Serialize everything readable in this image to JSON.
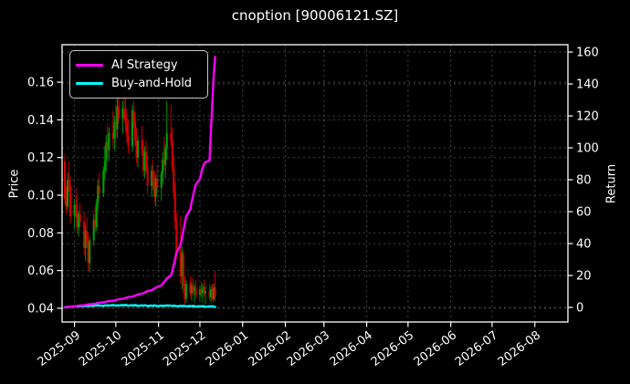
{
  "title": "cnoption [90006121.SZ]",
  "axes": {
    "left_label": "Price",
    "right_label": "Return",
    "price_ticks": [
      0.04,
      0.06,
      0.08,
      0.1,
      0.12,
      0.14,
      0.16
    ],
    "price_tick_labels": [
      "0.04",
      "0.06",
      "0.08",
      "0.10",
      "0.12",
      "0.14",
      "0.16"
    ],
    "return_ticks": [
      0,
      20,
      40,
      60,
      80,
      100,
      120,
      140,
      160
    ],
    "return_tick_labels": [
      "0",
      "20",
      "40",
      "60",
      "80",
      "100",
      "120",
      "140",
      "160"
    ],
    "x_tick_labels": [
      "2025-09",
      "2025-10",
      "2025-11",
      "2025-12",
      "2026-01",
      "2026-02",
      "2026-03",
      "2026-04",
      "2026-05",
      "2026-06",
      "2026-07",
      "2026-08"
    ],
    "grid": true
  },
  "legend": {
    "entries": [
      {
        "label": "AI Strategy",
        "color": "#ff00ff"
      },
      {
        "label": "Buy-and-Hold",
        "color": "#00ffff"
      }
    ],
    "position": "upper-left"
  },
  "colors": {
    "background": "#000000",
    "text": "#ffffff",
    "spine": "#ffffff",
    "grid": "#454545",
    "candle_up": "#00a000",
    "candle_down": "#d40000",
    "ai_strategy": "#ff00ff",
    "buy_and_hold": "#00ffff"
  },
  "chart_data": {
    "type": "candlestick+line",
    "title": "cnoption [90006121.SZ]",
    "xlabel": "",
    "ylabel_left": "Price",
    "ylabel_right": "Return",
    "x_range": [
      "2025-08-23",
      "2026-08-25"
    ],
    "price_ylim": [
      0.0327,
      0.1799
    ],
    "return_ylim": [
      -9.1,
      164.6
    ],
    "dates": [
      "2025-08-25",
      "2025-08-26",
      "2025-08-27",
      "2025-08-28",
      "2025-08-29",
      "2025-09-01",
      "2025-09-02",
      "2025-09-03",
      "2025-09-04",
      "2025-09-05",
      "2025-09-08",
      "2025-09-09",
      "2025-09-10",
      "2025-09-11",
      "2025-09-12",
      "2025-09-15",
      "2025-09-16",
      "2025-09-17",
      "2025-09-18",
      "2025-09-19",
      "2025-09-22",
      "2025-09-23",
      "2025-09-24",
      "2025-09-25",
      "2025-09-26",
      "2025-09-29",
      "2025-09-30",
      "2025-10-01",
      "2025-10-02",
      "2025-10-03",
      "2025-10-06",
      "2025-10-07",
      "2025-10-08",
      "2025-10-09",
      "2025-10-10",
      "2025-10-13",
      "2025-10-14",
      "2025-10-15",
      "2025-10-16",
      "2025-10-17",
      "2025-10-20",
      "2025-10-21",
      "2025-10-22",
      "2025-10-23",
      "2025-10-24",
      "2025-10-27",
      "2025-10-28",
      "2025-10-29",
      "2025-10-30",
      "2025-10-31",
      "2025-11-03",
      "2025-11-04",
      "2025-11-05",
      "2025-11-06",
      "2025-11-07",
      "2025-11-10",
      "2025-11-11",
      "2025-11-12",
      "2025-11-13",
      "2025-11-14",
      "2025-11-17",
      "2025-11-18",
      "2025-11-19",
      "2025-11-20",
      "2025-11-21",
      "2025-11-24",
      "2025-11-25",
      "2025-11-26",
      "2025-11-27",
      "2025-11-28",
      "2025-12-01",
      "2025-12-02",
      "2025-12-03",
      "2025-12-04",
      "2025-12-05",
      "2025-12-08",
      "2025-12-09",
      "2025-12-10",
      "2025-12-11",
      "2025-12-12"
    ],
    "candles_ohlc": [
      [
        0.118,
        0.122,
        0.095,
        0.098
      ],
      [
        0.098,
        0.105,
        0.09,
        0.094
      ],
      [
        0.094,
        0.112,
        0.092,
        0.108
      ],
      [
        0.108,
        0.118,
        0.102,
        0.105
      ],
      [
        0.105,
        0.11,
        0.085,
        0.089
      ],
      [
        0.089,
        0.098,
        0.082,
        0.095
      ],
      [
        0.095,
        0.104,
        0.088,
        0.091
      ],
      [
        0.091,
        0.1,
        0.08,
        0.083
      ],
      [
        0.083,
        0.092,
        0.078,
        0.09
      ],
      [
        0.09,
        0.096,
        0.083,
        0.086
      ],
      [
        0.086,
        0.091,
        0.068,
        0.072
      ],
      [
        0.072,
        0.084,
        0.065,
        0.081
      ],
      [
        0.081,
        0.088,
        0.072,
        0.075
      ],
      [
        0.075,
        0.08,
        0.06,
        0.064
      ],
      [
        0.064,
        0.078,
        0.059,
        0.076
      ],
      [
        0.076,
        0.09,
        0.073,
        0.087
      ],
      [
        0.087,
        0.094,
        0.08,
        0.083
      ],
      [
        0.083,
        0.098,
        0.081,
        0.096
      ],
      [
        0.096,
        0.108,
        0.092,
        0.105
      ],
      [
        0.105,
        0.112,
        0.098,
        0.101
      ],
      [
        0.101,
        0.115,
        0.099,
        0.113
      ],
      [
        0.113,
        0.126,
        0.108,
        0.118
      ],
      [
        0.118,
        0.132,
        0.112,
        0.128
      ],
      [
        0.128,
        0.138,
        0.12,
        0.124
      ],
      [
        0.124,
        0.136,
        0.118,
        0.133
      ],
      [
        0.133,
        0.145,
        0.126,
        0.13
      ],
      [
        0.13,
        0.142,
        0.124,
        0.139
      ],
      [
        0.139,
        0.148,
        0.132,
        0.135
      ],
      [
        0.135,
        0.152,
        0.13,
        0.147
      ],
      [
        0.147,
        0.154,
        0.138,
        0.141
      ],
      [
        0.141,
        0.15,
        0.133,
        0.146
      ],
      [
        0.146,
        0.155,
        0.14,
        0.143
      ],
      [
        0.143,
        0.151,
        0.134,
        0.138
      ],
      [
        0.138,
        0.146,
        0.128,
        0.132
      ],
      [
        0.132,
        0.14,
        0.122,
        0.126
      ],
      [
        0.126,
        0.148,
        0.123,
        0.145
      ],
      [
        0.145,
        0.15,
        0.136,
        0.139
      ],
      [
        0.139,
        0.144,
        0.126,
        0.129
      ],
      [
        0.129,
        0.136,
        0.117,
        0.12
      ],
      [
        0.12,
        0.132,
        0.115,
        0.129
      ],
      [
        0.129,
        0.137,
        0.121,
        0.124
      ],
      [
        0.124,
        0.13,
        0.11,
        0.113
      ],
      [
        0.113,
        0.126,
        0.109,
        0.123
      ],
      [
        0.123,
        0.129,
        0.112,
        0.115
      ],
      [
        0.115,
        0.121,
        0.101,
        0.105
      ],
      [
        0.105,
        0.116,
        0.099,
        0.113
      ],
      [
        0.113,
        0.119,
        0.103,
        0.107
      ],
      [
        0.107,
        0.113,
        0.096,
        0.099
      ],
      [
        0.099,
        0.111,
        0.094,
        0.109
      ],
      [
        0.109,
        0.116,
        0.101,
        0.104
      ],
      [
        0.104,
        0.113,
        0.097,
        0.111
      ],
      [
        0.111,
        0.123,
        0.106,
        0.119
      ],
      [
        0.119,
        0.131,
        0.113,
        0.116
      ],
      [
        0.116,
        0.127,
        0.109,
        0.125
      ],
      [
        0.125,
        0.15,
        0.119,
        0.133
      ],
      [
        0.133,
        0.148,
        0.126,
        0.129
      ],
      [
        0.129,
        0.136,
        0.112,
        0.115
      ],
      [
        0.115,
        0.121,
        0.098,
        0.101
      ],
      [
        0.101,
        0.107,
        0.082,
        0.086
      ],
      [
        0.086,
        0.091,
        0.066,
        0.07
      ],
      [
        0.07,
        0.089,
        0.053,
        0.057
      ],
      [
        0.057,
        0.073,
        0.05,
        0.069
      ],
      [
        0.069,
        0.071,
        0.048,
        0.052
      ],
      [
        0.052,
        0.057,
        0.042,
        0.045
      ],
      [
        0.045,
        0.055,
        0.043,
        0.053
      ],
      [
        0.053,
        0.057,
        0.046,
        0.048
      ],
      [
        0.048,
        0.054,
        0.044,
        0.052
      ],
      [
        0.052,
        0.056,
        0.047,
        0.049
      ],
      [
        0.049,
        0.053,
        0.043,
        0.051
      ],
      [
        0.051,
        0.055,
        0.045,
        0.047
      ],
      [
        0.047,
        0.052,
        0.044,
        0.05
      ],
      [
        0.05,
        0.054,
        0.046,
        0.048
      ],
      [
        0.048,
        0.053,
        0.043,
        0.051
      ],
      [
        0.051,
        0.055,
        0.046,
        0.048
      ],
      [
        0.048,
        0.052,
        0.042,
        0.049
      ],
      [
        0.049,
        0.053,
        0.044,
        0.046
      ],
      [
        0.046,
        0.052,
        0.043,
        0.05
      ],
      [
        0.05,
        0.053,
        0.044,
        0.045
      ],
      [
        0.045,
        0.053,
        0.043,
        0.051
      ],
      [
        0.051,
        0.06,
        0.044,
        0.046
      ]
    ],
    "series": [
      {
        "name": "AI Strategy",
        "axis": "return",
        "color": "#ff00ff",
        "values": [
          0,
          0.1,
          0.2,
          0.3,
          0.5,
          0.6,
          0.8,
          0.9,
          1.1,
          1.2,
          1.4,
          1.5,
          1.7,
          1.9,
          2.0,
          2.2,
          2.4,
          2.6,
          2.8,
          3.0,
          3.2,
          3.4,
          3.6,
          3.8,
          4.0,
          4.2,
          4.4,
          4.6,
          4.9,
          5.1,
          5.4,
          5.6,
          5.9,
          6.2,
          6.5,
          6.8,
          7.1,
          7.4,
          7.8,
          8.2,
          8.6,
          9.0,
          9.4,
          9.8,
          10.3,
          10.8,
          11.3,
          11.8,
          12.3,
          12.9,
          13.8,
          14.8,
          15.8,
          16.9,
          18.2,
          20.0,
          23.0,
          26.5,
          30.5,
          34.5,
          39.0,
          43.5,
          48.0,
          52.5,
          57.0,
          61.5,
          66.0,
          70.0,
          73.5,
          77.0,
          80.5,
          84.5,
          87.5,
          90.0,
          91.0,
          92.0,
          110.0,
          128.0,
          145.0,
          157.0
        ]
      },
      {
        "name": "Buy-and-Hold",
        "axis": "return",
        "color": "#00ffff",
        "values": [
          0.0,
          0.2,
          0.4,
          0.3,
          0.5,
          0.6,
          0.8,
          0.6,
          0.9,
          0.7,
          1.0,
          0.8,
          1.1,
          0.9,
          1.2,
          1.0,
          1.3,
          1.1,
          1.4,
          1.2,
          1.0,
          1.3,
          1.1,
          1.4,
          1.2,
          1.5,
          1.3,
          1.1,
          1.4,
          1.2,
          1.5,
          1.3,
          1.6,
          1.4,
          1.1,
          1.4,
          1.2,
          1.5,
          1.3,
          1.0,
          1.3,
          1.1,
          1.4,
          1.2,
          0.9,
          1.2,
          1.0,
          1.3,
          1.1,
          0.8,
          1.1,
          0.9,
          1.2,
          1.0,
          1.3,
          1.1,
          0.9,
          1.2,
          1.0,
          0.7,
          1.0,
          0.8,
          1.1,
          0.9,
          0.6,
          0.9,
          0.7,
          1.0,
          0.8,
          0.5,
          0.8,
          0.6,
          0.9,
          0.7,
          0.4,
          0.7,
          0.5,
          0.8,
          0.6,
          0.3
        ]
      }
    ]
  }
}
